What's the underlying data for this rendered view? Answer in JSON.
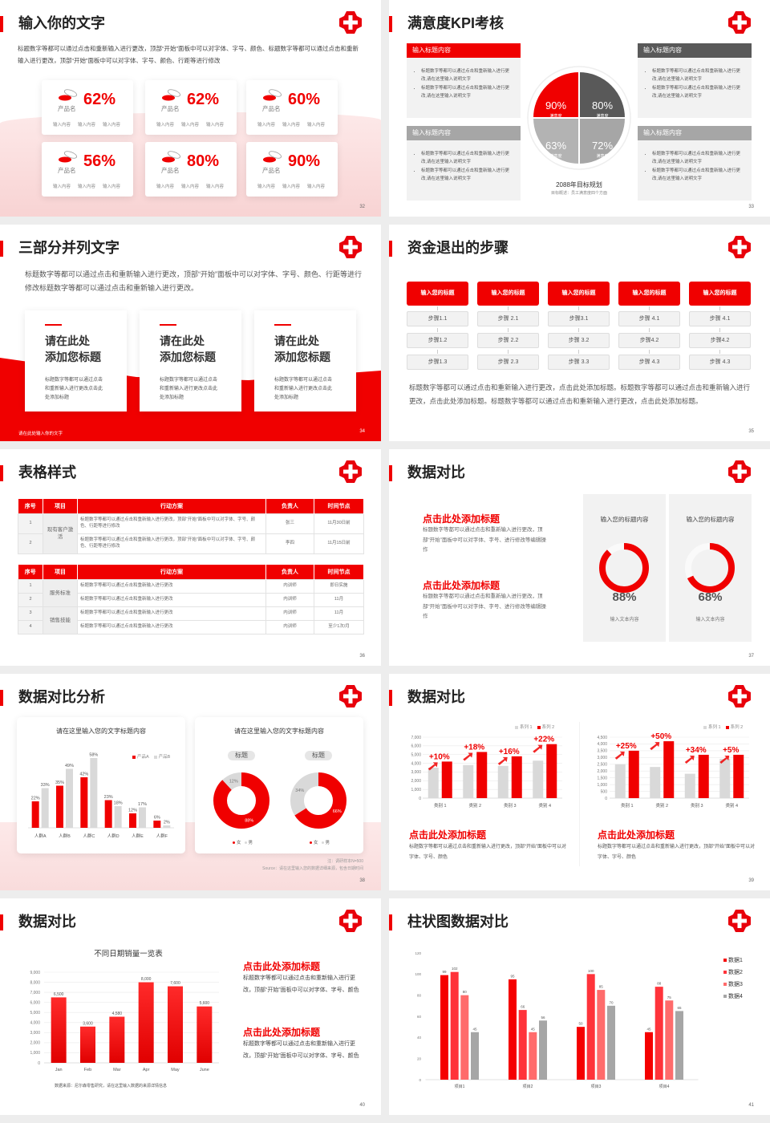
{
  "colors": {
    "accent": "#f00000",
    "dark_gray": "#595959",
    "mid_gray": "#a6a6a6",
    "light_gray": "#d9d9d9"
  },
  "slides": [
    {
      "title": "输入你的文字",
      "page": "32",
      "desc": "标题数字等都可以通过点击和重新输入进行更改，顶部“开始”面板中可以对字体、字号、颜色、标题数字等都可以通过点击和重新输入进行更改，顶部“开始”面板中可以对字体、字号、颜色、行距等进行修改",
      "cards": [
        {
          "value": "62%",
          "label": "产品名",
          "items": [
            "输入内容",
            "输入内容",
            "输入内容"
          ]
        },
        {
          "value": "62%",
          "label": "产品名",
          "items": [
            "输入内容",
            "输入内容",
            "输入内容"
          ]
        },
        {
          "value": "60%",
          "label": "产品名",
          "items": [
            "输入内容",
            "输入内容",
            "输入内容"
          ]
        },
        {
          "value": "56%",
          "label": "产品名",
          "items": [
            "输入内容",
            "输入内容",
            "输入内容"
          ]
        },
        {
          "value": "80%",
          "label": "产品名",
          "items": [
            "输入内容",
            "输入内容",
            "输入内容"
          ]
        },
        {
          "value": "90%",
          "label": "产品名",
          "items": [
            "输入内容",
            "输入内容",
            "输入内容"
          ]
        }
      ]
    },
    {
      "title": "满意度KPI考核",
      "page": "33",
      "boxes": [
        {
          "header": "输入标题内容",
          "bullets": [
            "标题数字等都可以通过点击和重新输入进行更改,请在这里输入说明文字",
            "标题数字等都可以通过点击和重新输入进行更改,请在这里输入说明文字"
          ]
        },
        {
          "header": "输入标题内容",
          "bullets": [
            "标题数字等都可以通过点击和重新输入进行更改,请在这里输入说明文字",
            "标题数字等都可以通过点击和重新输入进行更改,请在这里输入说明文字"
          ]
        },
        {
          "header": "输入标题内容",
          "bullets": [
            "标题数字等都可以通过点击和重新输入进行更改,请在这里输入说明文字",
            "标题数字等都可以通过点击和重新输入进行更改,请在这里输入说明文字"
          ]
        },
        {
          "header": "输入标题内容",
          "bullets": [
            "标题数字等都可以通过点击和重新输入进行更改,请在这里输入说明文字",
            "标题数字等都可以通过点击和重新输入进行更改,请在这里输入说明文字"
          ]
        }
      ],
      "pie": [
        {
          "value": "90%",
          "label": "满意度"
        },
        {
          "value": "80%",
          "label": "满意度"
        },
        {
          "value": "63%",
          "label": "满意度"
        },
        {
          "value": "72%",
          "label": "满意度"
        }
      ],
      "goal_title": "2088年目标规划",
      "goal_sub": "目标概述：员工满意度四个方面"
    },
    {
      "title": "三部分并列文字",
      "page": "34",
      "desc": "标题数字等都可以通过点击和重新输入进行更改，顶部“开始”面板中可以对字体、字号、颜色、行距等进行修改标题数字等都可以通过点击和重新输入进行更改。",
      "cards": [
        {
          "line1": "请在此处",
          "line2": "添加您标题",
          "body": "标题数字等都可以通过点击和重新输入进行更改点击此处添加标题"
        },
        {
          "line1": "请在此处",
          "line2": "添加您标题",
          "body": "标题数字等都可以通过点击和重新输入进行更改点击此处添加标题"
        },
        {
          "line1": "请在此处",
          "line2": "添加您标题",
          "body": "标题数字等都可以通过点击和重新输入进行更改点击此处添加标题"
        }
      ],
      "footer": "请在此处输入你的文字"
    },
    {
      "title": "资金退出的步骤",
      "page": "35",
      "columns": [
        {
          "header": "输入您的标题",
          "steps": [
            "步骤1.1",
            "步骤1.2",
            "步骤1.3"
          ]
        },
        {
          "header": "输入您的标题",
          "steps": [
            "步骤 2.1",
            "步骤 2.2",
            "步骤 2.3"
          ]
        },
        {
          "header": "输入您的标题",
          "steps": [
            "步骤3.1",
            "步骤 3.2",
            "步骤 3.3"
          ]
        },
        {
          "header": "输入您的标题",
          "steps": [
            "步骤 4.1",
            "步骤4.2",
            "步骤 4.3"
          ]
        },
        {
          "header": "输入您的标题",
          "steps": [
            "步骤 4.1",
            "步骤4.2",
            "步骤 4.3"
          ]
        }
      ],
      "desc": "标题数字等都可以通过点击和重新输入进行更改，点击此处添加标题。标题数字等都可以通过点击和重新输入进行更改，点击此处添加标题。标题数字等都可以通过点击和重新输入进行更改，点击此处添加标题。"
    },
    {
      "title": "表格样式",
      "page": "36",
      "tables": [
        {
          "headers": [
            "序号",
            "项目",
            "行动方案",
            "负责人",
            "时间节点"
          ],
          "groups": [
            {
              "project": "现有客户激活",
              "rows": [
                {
                  "no": "1",
                  "plan": "标题数字等都可以通过点击和重新输入进行更改，顶部“开始”面板中可以对字体、字号、颜色、行距等进行修改",
                  "owner": "张三",
                  "time": "11月30日前"
                },
                {
                  "no": "2",
                  "plan": "标题数字等都可以通过点击和重新输入进行更改，顶部“开始”面板中可以对字体、字号、颜色、行距等进行修改",
                  "owner": "李四",
                  "time": "11月15日前"
                }
              ]
            }
          ]
        },
        {
          "headers": [
            "序号",
            "项目",
            "行动方案",
            "负责人",
            "时间节点"
          ],
          "groups": [
            {
              "project": "服务标准",
              "rows": [
                {
                  "no": "1",
                  "plan": "标题数字等都可以通过点击和重新输入进行更改",
                  "owner": "内训师",
                  "time": "即日实施"
                },
                {
                  "no": "2",
                  "plan": "标题数字等都可以通过点击和重新输入进行更改",
                  "owner": "内训师",
                  "time": "11月"
                }
              ]
            },
            {
              "project": "销售技能",
              "rows": [
                {
                  "no": "3",
                  "plan": "标题数字等都可以通过点击和重新输入进行更改",
                  "owner": "内训师",
                  "time": "11月"
                },
                {
                  "no": "4",
                  "plan": "标题数字等都可以通过点击和重新输入进行更改",
                  "owner": "内训师",
                  "time": "至少1次/月"
                }
              ]
            }
          ]
        }
      ]
    },
    {
      "title": "数据对比",
      "page": "37",
      "blocks": [
        {
          "title": "点击此处添加标题",
          "body": "标题数字等都可以通过点击和重新输入进行更改，顶部“开始”面板中可以对字体、字号、进行修改等编辑操作"
        },
        {
          "title": "点击此处添加标题",
          "body": "标题数字等都可以通过点击和重新输入进行更改，顶部“开始”面板中可以对字体、字号、进行修改等编辑操作"
        }
      ],
      "panels": [
        {
          "title": "输入您的标题内容",
          "percent": 88,
          "value": "88%",
          "caption": "输入文本内容"
        },
        {
          "title": "输入您的标题内容",
          "percent": 68,
          "value": "68%",
          "caption": "输入文本内容"
        }
      ]
    },
    {
      "title": "数据对比分析",
      "page": "38",
      "bar_card_title": "请在这里输入您的文字标题内容",
      "donut_card_title": "请在这里输入您的文字标题内容",
      "note": "注：调研样本N=500",
      "source": "Source：请在这里输入您的数据详细来源，包含日期时间"
    },
    {
      "title": "数据对比",
      "page": "39",
      "texts": [
        {
          "title": "点击此处添加标题",
          "body": "标题数字等都可以通过点击和重新输入进行更改，顶部“开始”面板中可以对字体、字号、颜色"
        },
        {
          "title": "点击此处添加标题",
          "body": "标题数字等都可以通过点击和重新输入进行更改，顶部“开始”面板中可以对字体、字号、颜色"
        }
      ]
    },
    {
      "title": "数据对比",
      "page": "40",
      "source": "数据来源：尼尔森零售研究，请在这里输入数据的来源详情信息",
      "texts": [
        {
          "title": "点击此处添加标题",
          "body": "标题数字等都可以通过点击和重新输入进行更改，顶部“开始”面板中可以对字体、字号、颜色"
        },
        {
          "title": "点击此处添加标题",
          "body": "标题数字等都可以通过点击和重新输入进行更改，顶部“开始”面板中可以对字体、字号、颜色"
        }
      ]
    },
    {
      "title": "柱状图数据对比",
      "page": "41"
    }
  ],
  "chart_data": [
    {
      "type": "bar",
      "categories": [
        "人群A",
        "人群B",
        "人群C",
        "人群D",
        "人群E",
        "人群F"
      ],
      "series": [
        {
          "name": "产品A",
          "values": [
            22,
            35,
            42,
            23,
            12,
            6
          ]
        },
        {
          "name": "产品B",
          "values": [
            33,
            49,
            58,
            18,
            17,
            2
          ]
        }
      ],
      "unit": "%",
      "legend": "top-right",
      "grid": false
    },
    {
      "type": "pie",
      "title": "标题",
      "categories": [
        "女",
        "男"
      ],
      "values": [
        88,
        12
      ],
      "unit": "%",
      "legend": "bottom"
    },
    {
      "type": "pie",
      "title": "标题",
      "categories": [
        "女",
        "男"
      ],
      "values": [
        66,
        34
      ],
      "unit": "%",
      "legend": "bottom"
    },
    {
      "type": "bar",
      "categories": [
        "类别 1",
        "类别 2",
        "类别 3",
        "类别 4"
      ],
      "series": [
        {
          "name": "系列 1",
          "values": [
            3500,
            3800,
            3700,
            4300
          ]
        },
        {
          "name": "系列 2",
          "values": [
            4200,
            5300,
            4800,
            6200
          ]
        }
      ],
      "growth_labels": [
        "+10%",
        "+18%",
        "+16%",
        "+22%"
      ],
      "ylim": [
        0,
        7000
      ],
      "ytick_step": 1000,
      "grid": true,
      "legend": "top-right"
    },
    {
      "type": "bar",
      "categories": [
        "类别 1",
        "类别 2",
        "类别 3",
        "类别 4"
      ],
      "series": [
        {
          "name": "系列 1",
          "values": [
            2500,
            2300,
            1800,
            2900
          ]
        },
        {
          "name": "系列 2",
          "values": [
            3500,
            4200,
            3200,
            3200
          ]
        }
      ],
      "growth_labels": [
        "+25%",
        "+50%",
        "+34%",
        "+5%"
      ],
      "ylim": [
        0,
        4500
      ],
      "ytick_step": 500,
      "grid": true,
      "legend": "top-right"
    },
    {
      "type": "bar",
      "title": "不同日期销量一览表",
      "categories": [
        "Jan",
        "Feb",
        "Mar",
        "Apr",
        "May",
        "June"
      ],
      "values": [
        6500,
        3600,
        4580,
        8000,
        7600,
        5600
      ],
      "data_labels": [
        "6,500",
        "3,600",
        "4,580",
        "8,000",
        "7,600",
        "5,600"
      ],
      "ylim": [
        0,
        9000
      ],
      "ytick_step": 1000,
      "grid": true
    },
    {
      "type": "bar",
      "categories": [
        "项目1",
        "项目2",
        "项目3",
        "项目4"
      ],
      "series": [
        {
          "name": "数据1",
          "values": [
            99,
            95,
            50,
            45
          ]
        },
        {
          "name": "数据2",
          "values": [
            102,
            66,
            100,
            88
          ]
        },
        {
          "name": "数据3",
          "values": [
            80,
            45,
            85,
            75
          ]
        },
        {
          "name": "数据4",
          "values": [
            45,
            56,
            70,
            65
          ]
        }
      ],
      "ylim": [
        0,
        120
      ],
      "ytick_step": 20,
      "grid": false,
      "legend": "right"
    }
  ]
}
